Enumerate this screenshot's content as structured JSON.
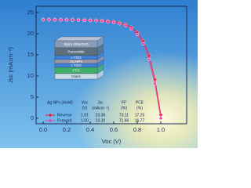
{
  "chart_data": {
    "type": "line",
    "x_label": "Voc (V)",
    "y_label": "Jsc (mAcm⁻²)",
    "x": [
      0,
      0.05,
      0.1,
      0.15,
      0.2,
      0.25,
      0.3,
      0.35,
      0.4,
      0.45,
      0.5,
      0.55,
      0.6,
      0.65,
      0.7,
      0.75,
      0.8,
      0.85,
      0.9,
      0.95,
      1.0
    ],
    "series": [
      {
        "name": "Reverse",
        "color": "#e8213c",
        "marker": "diamond",
        "values": [
          23.36,
          23.36,
          23.35,
          23.34,
          23.33,
          23.31,
          23.29,
          23.26,
          23.22,
          23.17,
          23.1,
          23.0,
          22.85,
          22.6,
          22.2,
          21.5,
          20.3,
          18.3,
          14.8,
          9.2,
          0.8
        ]
      },
      {
        "name": "Forward",
        "color": "#e04aa8",
        "marker": "circle",
        "values": [
          23.3,
          23.29,
          23.28,
          23.27,
          23.25,
          23.23,
          23.2,
          23.16,
          23.11,
          23.04,
          22.95,
          22.82,
          22.63,
          22.35,
          21.9,
          21.1,
          19.8,
          17.6,
          13.9,
          8.2,
          0.0
        ]
      }
    ],
    "xlim": [
      -0.06,
      1.22
    ],
    "ylim": [
      -1.3,
      26.5
    ],
    "xticks": [
      {
        "value": 0,
        "label": "0.0"
      },
      {
        "value": 0.2,
        "label": "0.2"
      },
      {
        "value": 0.4,
        "label": "0.4"
      },
      {
        "value": 0.6,
        "label": "0.6"
      },
      {
        "value": 0.8,
        "label": "0.8"
      },
      {
        "value": 1.0,
        "label": "1.0"
      }
    ],
    "yticks": [
      0,
      5,
      10,
      15,
      20,
      25
    ],
    "inset": {
      "layers": [
        "Spiro-OMeTAD",
        "Perovskite",
        "c-TiO2",
        "Ag NPs",
        "c-TiO2",
        "FTO",
        "Glass"
      ]
    },
    "table": {
      "header": [
        "Ag NPs (4mM)",
        "Voc",
        "Jsc",
        "FF",
        "PCE"
      ],
      "units": [
        "(V)",
        "(mAcm⁻²)",
        "(%)",
        "(%)"
      ],
      "rows": [
        [
          "1.01",
          "23.36",
          "73.11",
          "17.25"
        ],
        [
          "1.00",
          "23.30",
          "71.96",
          "16.77"
        ]
      ]
    }
  }
}
